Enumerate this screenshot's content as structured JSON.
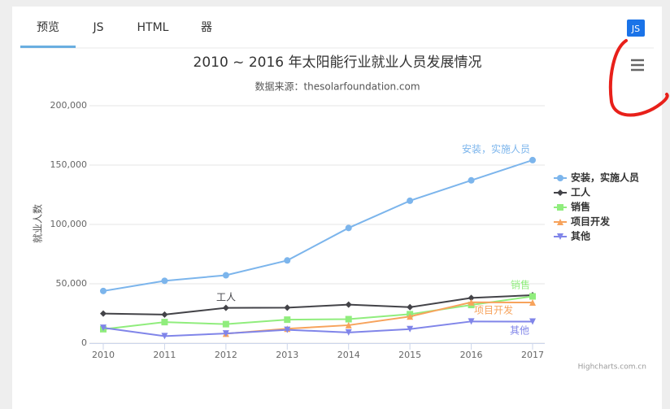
{
  "tabs": [
    "预览",
    "JS",
    "HTML",
    "器"
  ],
  "badge": "JS",
  "credits": "Highcharts.com.cn",
  "chart_data": {
    "type": "line",
    "title": "2010 ~ 2016 年太阳能行业就业人员发展情况",
    "subtitle": "数据来源：thesolarfoundation.com",
    "y_axis_label": "就业人数",
    "categories": [
      "2010",
      "2011",
      "2012",
      "2013",
      "2014",
      "2015",
      "2016",
      "2017"
    ],
    "ylim": [
      0,
      200000
    ],
    "yticks": [
      0,
      {
        "value": 50000,
        "label": "50,000"
      },
      {
        "value": 100000,
        "label": "100,000"
      },
      {
        "value": 150000,
        "label": "150,000"
      },
      {
        "value": 200000,
        "label": "200,000"
      }
    ],
    "grid": true,
    "legend": "right",
    "series": [
      {
        "name": "安装，实施人员",
        "color": "#7cb5ec",
        "marker": "circle",
        "values": [
          43934,
          52503,
          57177,
          69658,
          97031,
          119931,
          137133,
          154175
        ]
      },
      {
        "name": "工人",
        "color": "#434348",
        "marker": "diamond",
        "values": [
          24916,
          24064,
          29742,
          29851,
          32490,
          30282,
          38121,
          40434
        ]
      },
      {
        "name": "销售",
        "color": "#90ed7d",
        "marker": "square",
        "values": [
          11744,
          17722,
          16005,
          19771,
          20185,
          24377,
          32147,
          39387
        ]
      },
      {
        "name": "项目开发",
        "color": "#f7a35c",
        "marker": "triangle",
        "values": [
          null,
          null,
          7988,
          12169,
          15112,
          22452,
          34400,
          34227
        ]
      },
      {
        "name": "其他",
        "color": "#8085e9",
        "marker": "triangle-down",
        "values": [
          12908,
          5948,
          8105,
          11248,
          8989,
          11816,
          18274,
          18111
        ]
      }
    ]
  }
}
